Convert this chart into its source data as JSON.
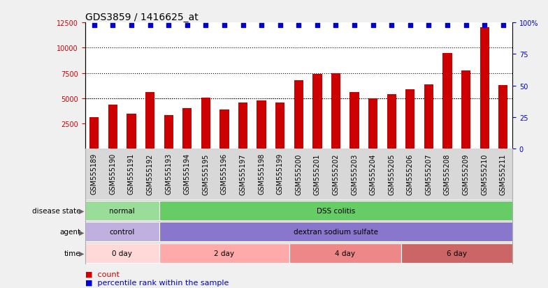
{
  "title": "GDS3859 / 1416625_at",
  "samples": [
    "GSM555189",
    "GSM555190",
    "GSM555191",
    "GSM555192",
    "GSM555193",
    "GSM555194",
    "GSM555195",
    "GSM555196",
    "GSM555197",
    "GSM555198",
    "GSM555199",
    "GSM555200",
    "GSM555201",
    "GSM555202",
    "GSM555203",
    "GSM555204",
    "GSM555205",
    "GSM555206",
    "GSM555207",
    "GSM555208",
    "GSM555209",
    "GSM555210",
    "GSM555211"
  ],
  "counts": [
    3100,
    4350,
    3500,
    5600,
    3350,
    4000,
    5050,
    3900,
    4600,
    4800,
    4600,
    6800,
    7400,
    7500,
    5600,
    5000,
    5400,
    5900,
    6400,
    9500,
    7750,
    12000,
    6300
  ],
  "percentile": [
    98,
    98,
    98,
    98,
    98,
    98,
    98,
    98,
    98,
    98,
    98,
    98,
    98,
    98,
    98,
    98,
    98,
    98,
    98,
    98,
    98,
    98,
    98
  ],
  "bar_color": "#cc0000",
  "dot_color": "#0000cc",
  "ylim_left": [
    0,
    12500
  ],
  "ylim_right": [
    0,
    100
  ],
  "yticks_left": [
    2500,
    5000,
    7500,
    10000,
    12500
  ],
  "yticks_right": [
    0,
    25,
    50,
    75,
    100
  ],
  "ytick_labels_right": [
    "0",
    "25",
    "50",
    "75",
    "100%"
  ],
  "grid_values": [
    5000,
    7500,
    10000
  ],
  "fig_bg": "#f0f0f0",
  "plot_bg": "#ffffff",
  "xtick_area_bg": "#d8d8d8",
  "disease_state_groups": [
    {
      "label": "normal",
      "start": 0,
      "end": 4,
      "color": "#99dd99"
    },
    {
      "label": "DSS colitis",
      "start": 4,
      "end": 23,
      "color": "#66cc66"
    }
  ],
  "agent_groups": [
    {
      "label": "control",
      "start": 0,
      "end": 4,
      "color": "#c0b0e0"
    },
    {
      "label": "dextran sodium sulfate",
      "start": 4,
      "end": 23,
      "color": "#8877cc"
    }
  ],
  "time_groups": [
    {
      "label": "0 day",
      "start": 0,
      "end": 4,
      "color": "#ffd8d8"
    },
    {
      "label": "2 day",
      "start": 4,
      "end": 11,
      "color": "#ffaaaa"
    },
    {
      "label": "4 day",
      "start": 11,
      "end": 17,
      "color": "#ee8888"
    },
    {
      "label": "6 day",
      "start": 17,
      "end": 23,
      "color": "#cc6666"
    }
  ],
  "row_labels": [
    "disease state",
    "agent",
    "time"
  ],
  "legend_labels": [
    "count",
    "percentile rank within the sample"
  ],
  "legend_colors": [
    "#cc0000",
    "#0000cc"
  ],
  "title_fontsize": 10,
  "tick_fontsize": 7,
  "bar_width": 0.5
}
